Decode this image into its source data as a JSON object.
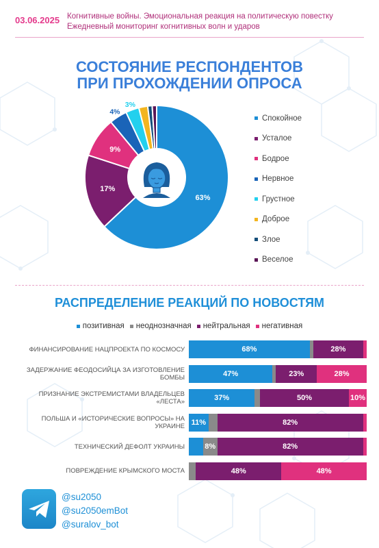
{
  "header": {
    "date": "03.06.2025",
    "line1": "Когнитивные войны. Эмоциональная реакция на политическую повестку",
    "line2": "Ежедневный мониторинг когнитивных волн и ударов"
  },
  "colors": {
    "positive": "#1d8fd6",
    "ambiguous": "#8a8a8a",
    "neutral": "#7b1e6e",
    "negative": "#e0317e"
  },
  "chart_data": [
    {
      "type": "pie",
      "title_line1": "СОСТОЯНИЕ РЕСПОНДЕНТОВ",
      "title_line2": "ПРИ ПРОХОЖДЕНИИ ОПРОСА",
      "legend_position": "right",
      "icon": "woman-face-icon",
      "slices": [
        {
          "name": "Спокойное",
          "value": 63,
          "label": "63%",
          "color": "#1d8fd6"
        },
        {
          "name": "Усталое",
          "value": 17,
          "label": "17%",
          "color": "#7b1e6e"
        },
        {
          "name": "Бодрое",
          "value": 9,
          "label": "9%",
          "color": "#e0317e"
        },
        {
          "name": "Нервное",
          "value": 4,
          "label": "4%",
          "color": "#1a64b8"
        },
        {
          "name": "Грустное",
          "value": 3,
          "label": "3%",
          "color": "#23d0ee"
        },
        {
          "name": "Доброе",
          "value": 2,
          "label": "",
          "color": "#f3b51f"
        },
        {
          "name": "Злое",
          "value": 1,
          "label": "",
          "color": "#144e7a"
        },
        {
          "name": "Веселое",
          "value": 1,
          "label": "",
          "color": "#5a1656"
        }
      ]
    },
    {
      "type": "bar",
      "orientation": "horizontal-stacked",
      "title": "РАСПРЕДЕЛЕНИЕ РЕАКЦИЙ ПО НОВОСТЯМ",
      "legend_position": "top",
      "series_names": [
        "позитивная",
        "неоднозначная",
        "нейтральная",
        "негативная"
      ],
      "rows": [
        {
          "label": "ФИНАНСИРОВАНИЕ НАЦПРОЕКТА ПО КОСМОСУ",
          "values": [
            68,
            2,
            28,
            2
          ],
          "labels": [
            "68%",
            "",
            "28%",
            ""
          ]
        },
        {
          "label": "ЗАДЕРЖАНИЕ ФЕОДОСИЙЦА ЗА ИЗГОТОВЛЕНИЕ БОМБЫ",
          "values": [
            47,
            2,
            23,
            28
          ],
          "labels": [
            "47%",
            "",
            "23%",
            "28%"
          ]
        },
        {
          "label": "ПРИЗНАНИЕ ЭКСТРЕМИСТАМИ ВЛАДЕЛЬЦЕВ «ЛЕСТА»",
          "values": [
            37,
            3,
            50,
            10
          ],
          "labels": [
            "37%",
            "",
            "50%",
            "10%"
          ]
        },
        {
          "label": "ПОЛЬША И «ИСТОРИЧЕСКИЕ ВОПРОСЫ» НА УКРАИНЕ",
          "values": [
            11,
            5,
            82,
            2
          ],
          "labels": [
            "11%",
            "",
            "82%",
            ""
          ]
        },
        {
          "label": "ТЕХНИЧЕСКИЙ ДЕФОЛТ УКРАИНЫ",
          "values": [
            8,
            8,
            82,
            2
          ],
          "labels": [
            "",
            "8%",
            "82%",
            ""
          ]
        },
        {
          "label": "ПОВРЕЖДЕНИЕ КРЫМСКОГО МОСТА",
          "values": [
            0,
            4,
            48,
            48
          ],
          "labels": [
            "",
            "",
            "48%",
            "48%"
          ]
        }
      ]
    }
  ],
  "footer": {
    "icon": "telegram-icon",
    "handles": [
      "@su2050",
      "@su2050emBot",
      "@suralov_bot"
    ]
  }
}
